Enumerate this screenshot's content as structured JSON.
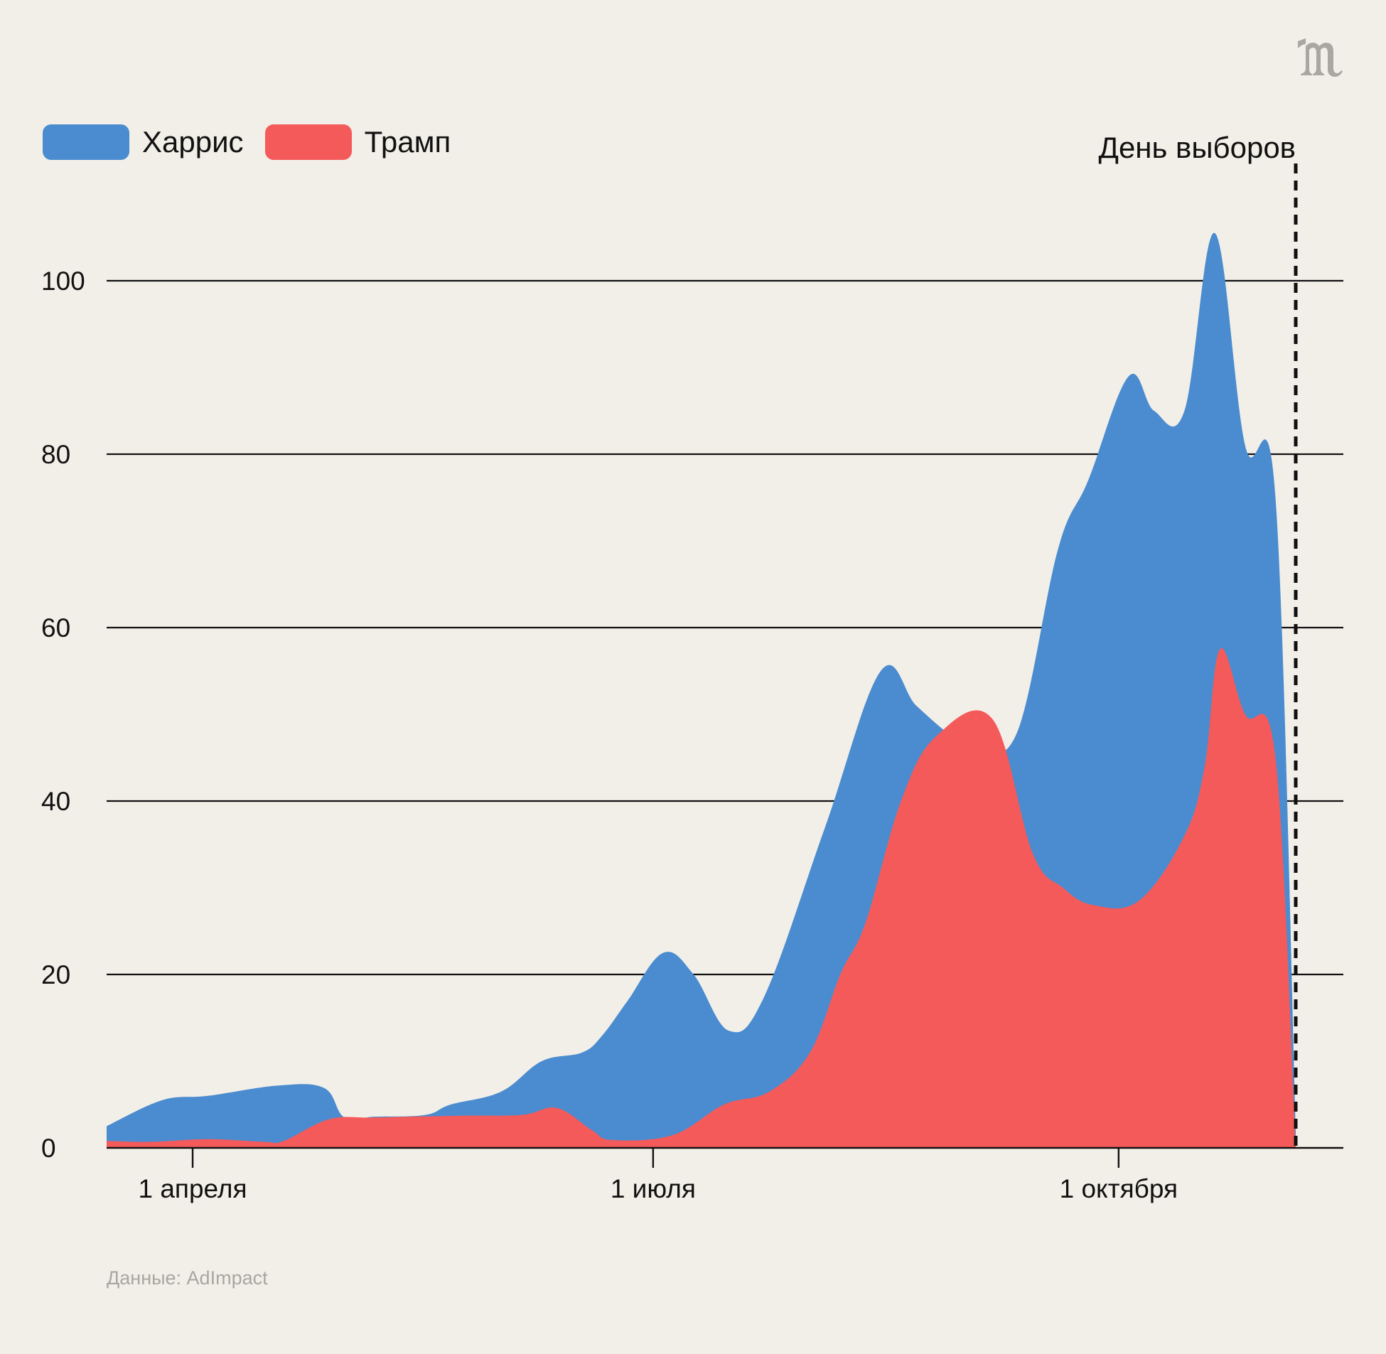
{
  "logo": {
    "icon": "meduza-m-logo"
  },
  "legend": [
    {
      "name": "Харрис",
      "color": "#4a8ccf"
    },
    {
      "name": "Трамп",
      "color": "#f55a5a"
    }
  ],
  "source": "Данные: AdImpact",
  "chart_data": {
    "type": "area",
    "title": "",
    "xlabel": "",
    "ylabel": "",
    "ylim": [
      0,
      110
    ],
    "yticks": [
      0,
      20,
      40,
      60,
      80,
      100
    ],
    "xlim": [
      "2024-03-15",
      "2024-11-05"
    ],
    "xticks": [
      {
        "date": "2024-04-01",
        "label": "1 апреля"
      },
      {
        "date": "2024-07-01",
        "label": "1 июля"
      },
      {
        "date": "2024-10-01",
        "label": "1 октября"
      }
    ],
    "grid": true,
    "annotations": [
      {
        "date": "2024-11-05",
        "label": "День выборов",
        "style": "dashed-vertical-line"
      }
    ],
    "series": [
      {
        "name": "Харрис",
        "color": "#4a8ccf",
        "points": [
          [
            "2024-03-15",
            2.5
          ],
          [
            "2024-03-26",
            5.5
          ],
          [
            "2024-04-04",
            6.0
          ],
          [
            "2024-04-18",
            7.2
          ],
          [
            "2024-04-27",
            6.9
          ],
          [
            "2024-05-01",
            3.5
          ],
          [
            "2024-05-07",
            3.6
          ],
          [
            "2024-05-17",
            3.8
          ],
          [
            "2024-05-22",
            5.0
          ],
          [
            "2024-06-01",
            6.5
          ],
          [
            "2024-06-09",
            10.0
          ],
          [
            "2024-06-17",
            11.0
          ],
          [
            "2024-06-21",
            13.0
          ],
          [
            "2024-06-26",
            17.0
          ],
          [
            "2024-07-03",
            22.5
          ],
          [
            "2024-07-09",
            20.0
          ],
          [
            "2024-07-16",
            13.5
          ],
          [
            "2024-07-23",
            17.5
          ],
          [
            "2024-08-04",
            37.0
          ],
          [
            "2024-08-15",
            55.0
          ],
          [
            "2024-08-22",
            51.0
          ],
          [
            "2024-08-29",
            47.5
          ],
          [
            "2024-09-03",
            46.0
          ],
          [
            "2024-09-11",
            48.0
          ],
          [
            "2024-09-19",
            69.0
          ],
          [
            "2024-09-25",
            77.0
          ],
          [
            "2024-10-03",
            89.0
          ],
          [
            "2024-10-08",
            85.0
          ],
          [
            "2024-10-14",
            85.0
          ],
          [
            "2024-10-20",
            105.5
          ],
          [
            "2024-10-26",
            81.0
          ],
          [
            "2024-11-01",
            75.0
          ],
          [
            "2024-11-05",
            2.0
          ]
        ]
      },
      {
        "name": "Трамп",
        "color": "#f55a5a",
        "points": [
          [
            "2024-03-15",
            0.8
          ],
          [
            "2024-03-24",
            0.7
          ],
          [
            "2024-04-04",
            1.0
          ],
          [
            "2024-04-15",
            0.7
          ],
          [
            "2024-04-19",
            0.8
          ],
          [
            "2024-04-28",
            3.3
          ],
          [
            "2024-05-07",
            3.5
          ],
          [
            "2024-05-23",
            3.7
          ],
          [
            "2024-06-05",
            3.8
          ],
          [
            "2024-06-12",
            4.6
          ],
          [
            "2024-06-19",
            2.0
          ],
          [
            "2024-06-23",
            0.9
          ],
          [
            "2024-07-05",
            1.5
          ],
          [
            "2024-07-15",
            5.0
          ],
          [
            "2024-07-24",
            6.5
          ],
          [
            "2024-08-01",
            11.0
          ],
          [
            "2024-08-07",
            20.0
          ],
          [
            "2024-08-12",
            26.0
          ],
          [
            "2024-08-19",
            40.0
          ],
          [
            "2024-08-26",
            47.5
          ],
          [
            "2024-09-06",
            49.5
          ],
          [
            "2024-09-14",
            34.0
          ],
          [
            "2024-09-20",
            30.0
          ],
          [
            "2024-09-26",
            28.0
          ],
          [
            "2024-10-05",
            28.5
          ],
          [
            "2024-10-14",
            36.0
          ],
          [
            "2024-10-18",
            44.0
          ],
          [
            "2024-10-21",
            57.5
          ],
          [
            "2024-10-26",
            50.0
          ],
          [
            "2024-11-01",
            45.0
          ],
          [
            "2024-11-05",
            0.0
          ]
        ]
      }
    ]
  }
}
